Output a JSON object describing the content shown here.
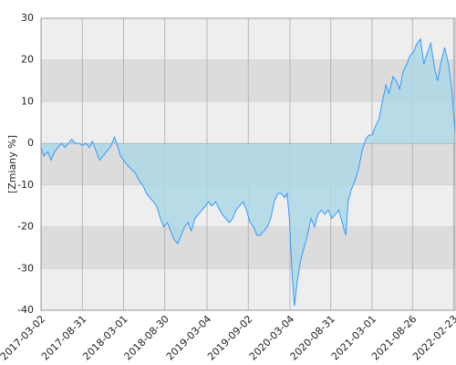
{
  "chart_data": {
    "type": "area",
    "ylabel": "[Zmiany %]",
    "x": [
      "2017-03-02",
      "2017-03-15",
      "2017-04-01",
      "2017-04-15",
      "2017-05-01",
      "2017-05-15",
      "2017-06-01",
      "2017-06-15",
      "2017-07-01",
      "2017-07-15",
      "2017-08-01",
      "2017-08-15",
      "2017-09-01",
      "2017-09-15",
      "2017-10-01",
      "2017-10-15",
      "2017-11-01",
      "2017-11-15",
      "2017-12-01",
      "2017-12-15",
      "2018-01-01",
      "2018-01-20",
      "2018-02-05",
      "2018-02-15",
      "2018-03-01",
      "2018-03-15",
      "2018-04-01",
      "2018-04-20",
      "2018-05-10",
      "2018-05-25",
      "2018-06-10",
      "2018-06-25",
      "2018-07-10",
      "2018-07-25",
      "2018-08-10",
      "2018-08-25",
      "2018-09-10",
      "2018-09-25",
      "2018-10-10",
      "2018-10-25",
      "2018-11-10",
      "2018-11-25",
      "2018-12-10",
      "2018-12-25",
      "2019-01-10",
      "2019-01-25",
      "2019-02-10",
      "2019-02-25",
      "2019-03-10",
      "2019-03-25",
      "2019-04-10",
      "2019-04-25",
      "2019-05-10",
      "2019-05-25",
      "2019-06-10",
      "2019-06-25",
      "2019-07-10",
      "2019-07-25",
      "2019-08-10",
      "2019-08-25",
      "2019-09-10",
      "2019-09-25",
      "2019-10-10",
      "2019-10-25",
      "2019-11-10",
      "2019-11-25",
      "2019-12-10",
      "2019-12-25",
      "2020-01-10",
      "2020-01-25",
      "2020-02-10",
      "2020-02-20",
      "2020-03-01",
      "2020-03-12",
      "2020-03-23",
      "2020-04-05",
      "2020-04-20",
      "2020-05-05",
      "2020-05-20",
      "2020-06-05",
      "2020-06-20",
      "2020-07-05",
      "2020-07-20",
      "2020-08-05",
      "2020-08-20",
      "2020-09-05",
      "2020-09-20",
      "2020-10-05",
      "2020-10-20",
      "2020-11-05",
      "2020-11-15",
      "2020-11-30",
      "2020-12-15",
      "2021-01-01",
      "2021-01-15",
      "2021-02-01",
      "2021-02-15",
      "2021-03-01",
      "2021-03-15",
      "2021-04-01",
      "2021-04-15",
      "2021-05-01",
      "2021-05-15",
      "2021-06-01",
      "2021-06-15",
      "2021-07-01",
      "2021-07-15",
      "2021-08-01",
      "2021-08-15",
      "2021-09-01",
      "2021-09-15",
      "2021-10-01",
      "2021-10-15",
      "2021-11-01",
      "2021-11-15",
      "2021-12-01",
      "2021-12-15",
      "2022-01-01",
      "2022-01-15",
      "2022-02-01",
      "2022-02-15",
      "2022-02-25",
      "2022-03-02"
    ],
    "values": [
      -1,
      -3,
      -2,
      -4,
      -2,
      -1,
      0,
      -1,
      0,
      1,
      0,
      0,
      -0.5,
      0,
      -1,
      0.5,
      -2,
      -4,
      -3,
      -2,
      -1,
      1.5,
      -1,
      -3,
      -4,
      -5,
      -6,
      -7,
      -9,
      -10,
      -12,
      -13,
      -14,
      -15,
      -18,
      -20,
      -19,
      -21,
      -23,
      -24,
      -22,
      -20,
      -19,
      -21,
      -18,
      -17,
      -16,
      -15,
      -14,
      -15,
      -14,
      -15.5,
      -17,
      -18,
      -19,
      -18,
      -16,
      -15,
      -14,
      -16,
      -19,
      -20,
      -22,
      -22,
      -21,
      -20,
      -18,
      -14,
      -12,
      -12,
      -13,
      -12,
      -18,
      -30,
      -39,
      -33,
      -28,
      -25,
      -22,
      -18,
      -20,
      -17,
      -16,
      -17,
      -16,
      -18,
      -17,
      -16,
      -19,
      -22,
      -14,
      -11,
      -9,
      -6,
      -2,
      1,
      2,
      2,
      4,
      6,
      10,
      14,
      12,
      16,
      15,
      13,
      17,
      19,
      21,
      22,
      24,
      25,
      19,
      22,
      24,
      18,
      15,
      20,
      23,
      19,
      13,
      6,
      3
    ],
    "color": "#3399ff",
    "fill": "#add8e6",
    "xlim": [
      "2017-03-02",
      "2022-03-02"
    ],
    "xticks": [
      "2017-03-02",
      "2017-08-31",
      "2018-03-01",
      "2018-08-30",
      "2019-03-04",
      "2019-09-02",
      "2020-03-04",
      "2020-08-31",
      "2021-03-01",
      "2021-08-26",
      "2022-02-23"
    ],
    "ylim": [
      -40,
      30
    ],
    "yticks": [
      -40,
      -30,
      -20,
      -10,
      0,
      10,
      20,
      30
    ],
    "grid": true
  }
}
